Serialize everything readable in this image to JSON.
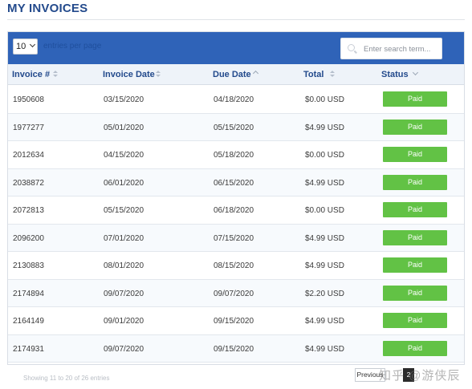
{
  "page": {
    "title": "MY INVOICES"
  },
  "toolbar": {
    "length_value": "10",
    "length_label": "entries per page",
    "search_placeholder": "Enter search term..."
  },
  "table": {
    "columns": [
      "Invoice #",
      "Invoice Date",
      "Due Date",
      "Total",
      "Status"
    ],
    "rows": [
      {
        "invoice": "1950608",
        "invoice_date": "03/15/2020",
        "due_date": "04/18/2020",
        "total": "$0.00 USD",
        "status": "Paid"
      },
      {
        "invoice": "1977277",
        "invoice_date": "05/01/2020",
        "due_date": "05/15/2020",
        "total": "$4.99 USD",
        "status": "Paid"
      },
      {
        "invoice": "2012634",
        "invoice_date": "04/15/2020",
        "due_date": "05/18/2020",
        "total": "$0.00 USD",
        "status": "Paid"
      },
      {
        "invoice": "2038872",
        "invoice_date": "06/01/2020",
        "due_date": "06/15/2020",
        "total": "$4.99 USD",
        "status": "Paid"
      },
      {
        "invoice": "2072813",
        "invoice_date": "05/15/2020",
        "due_date": "06/18/2020",
        "total": "$0.00 USD",
        "status": "Paid"
      },
      {
        "invoice": "2096200",
        "invoice_date": "07/01/2020",
        "due_date": "07/15/2020",
        "total": "$4.99 USD",
        "status": "Paid"
      },
      {
        "invoice": "2130883",
        "invoice_date": "08/01/2020",
        "due_date": "08/15/2020",
        "total": "$4.99 USD",
        "status": "Paid"
      },
      {
        "invoice": "2174894",
        "invoice_date": "09/07/2020",
        "due_date": "09/07/2020",
        "total": "$2.20 USD",
        "status": "Paid"
      },
      {
        "invoice": "2164149",
        "invoice_date": "09/01/2020",
        "due_date": "09/15/2020",
        "total": "$4.99 USD",
        "status": "Paid"
      },
      {
        "invoice": "2174931",
        "invoice_date": "09/07/2020",
        "due_date": "09/15/2020",
        "total": "$4.99 USD",
        "status": "Paid"
      }
    ]
  },
  "footer": {
    "info": "Showing 11 to 20 of 26 entries",
    "prev_label": "Previous",
    "page_label": "2"
  },
  "watermark": "知乎 @游侠辰",
  "colors": {
    "title": "#234a8c",
    "toolbar": "#2f63b8",
    "paid": "#62c245"
  }
}
